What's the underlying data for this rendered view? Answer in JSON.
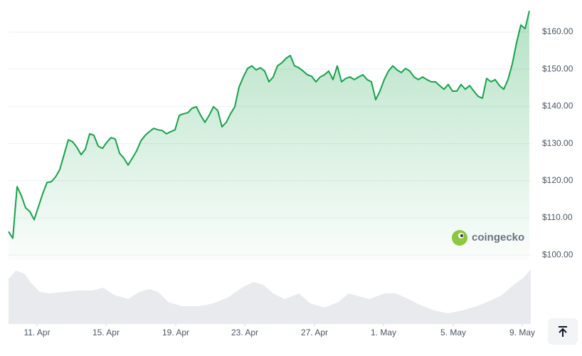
{
  "chart_data": {
    "type": "line",
    "values": [
      106.3,
      104.5,
      118.4,
      116,
      112.7,
      111.7,
      109.5,
      113,
      116.5,
      119.5,
      119.7,
      121,
      123,
      127,
      131,
      130.5,
      129,
      127,
      128.5,
      132.6,
      132.2,
      129.3,
      128.7,
      130.3,
      131.6,
      131.2,
      127.4,
      126.1,
      124.2,
      126.1,
      128,
      130.7,
      132.2,
      133.2,
      134.1,
      133.7,
      133.5,
      132.6,
      133.2,
      133.7,
      137.6,
      138,
      138.3,
      139.5,
      139.9,
      137.6,
      135.7,
      137.6,
      139.9,
      138.9,
      134.5,
      135.7,
      138,
      139.9,
      145.2,
      147.9,
      150.2,
      150.9,
      149.8,
      150.4,
      149.5,
      146.6,
      147.9,
      150.9,
      151.7,
      152.9,
      153.7,
      150.9,
      150.4,
      149.5,
      148.5,
      148.1,
      146.6,
      147.9,
      148.5,
      149.5,
      147.2,
      150.9,
      146.6,
      147.5,
      147.9,
      147.2,
      147.9,
      148.5,
      147.2,
      146.6,
      141.8,
      144.1,
      147.2,
      149.5,
      150.9,
      149.8,
      149.1,
      150.2,
      149.5,
      147.9,
      147.2,
      147.9,
      147.2,
      146.6,
      146.6,
      145.6,
      144.6,
      145.9,
      144.1,
      144.1,
      145.9,
      144.6,
      145.6,
      144.1,
      142.7,
      142.2,
      147.5,
      146.6,
      147.2,
      145.6,
      144.6,
      147.2,
      151.4,
      157.1,
      161.9,
      160.9,
      165.7
    ],
    "color": "#16a34a",
    "xlim": [
      0,
      122.33
    ],
    "xticks": [
      {
        "value": 6.67,
        "label": "11. Apr"
      },
      {
        "value": 22.83,
        "label": "15. Apr"
      },
      {
        "value": 39.17,
        "label": "19. Apr"
      },
      {
        "value": 55.33,
        "label": "23. Apr"
      },
      {
        "value": 71.67,
        "label": "27. Apr"
      },
      {
        "value": 87.83,
        "label": "1. May"
      },
      {
        "value": 104.17,
        "label": "5. May"
      },
      {
        "value": 120.33,
        "label": "9. May"
      }
    ],
    "ylim": [
      98.7,
      166.7
    ],
    "yticks": [
      {
        "value": 100,
        "label": "$100.00"
      },
      {
        "value": 110,
        "label": "$110.00"
      },
      {
        "value": 120,
        "label": "$120.00"
      },
      {
        "value": 130,
        "label": "$130.00"
      },
      {
        "value": 140,
        "label": "$140.00"
      },
      {
        "value": 150,
        "label": "$150.00"
      },
      {
        "value": 160,
        "label": "$160.00"
      }
    ],
    "grid": true,
    "watermark": "coingecko"
  }
}
